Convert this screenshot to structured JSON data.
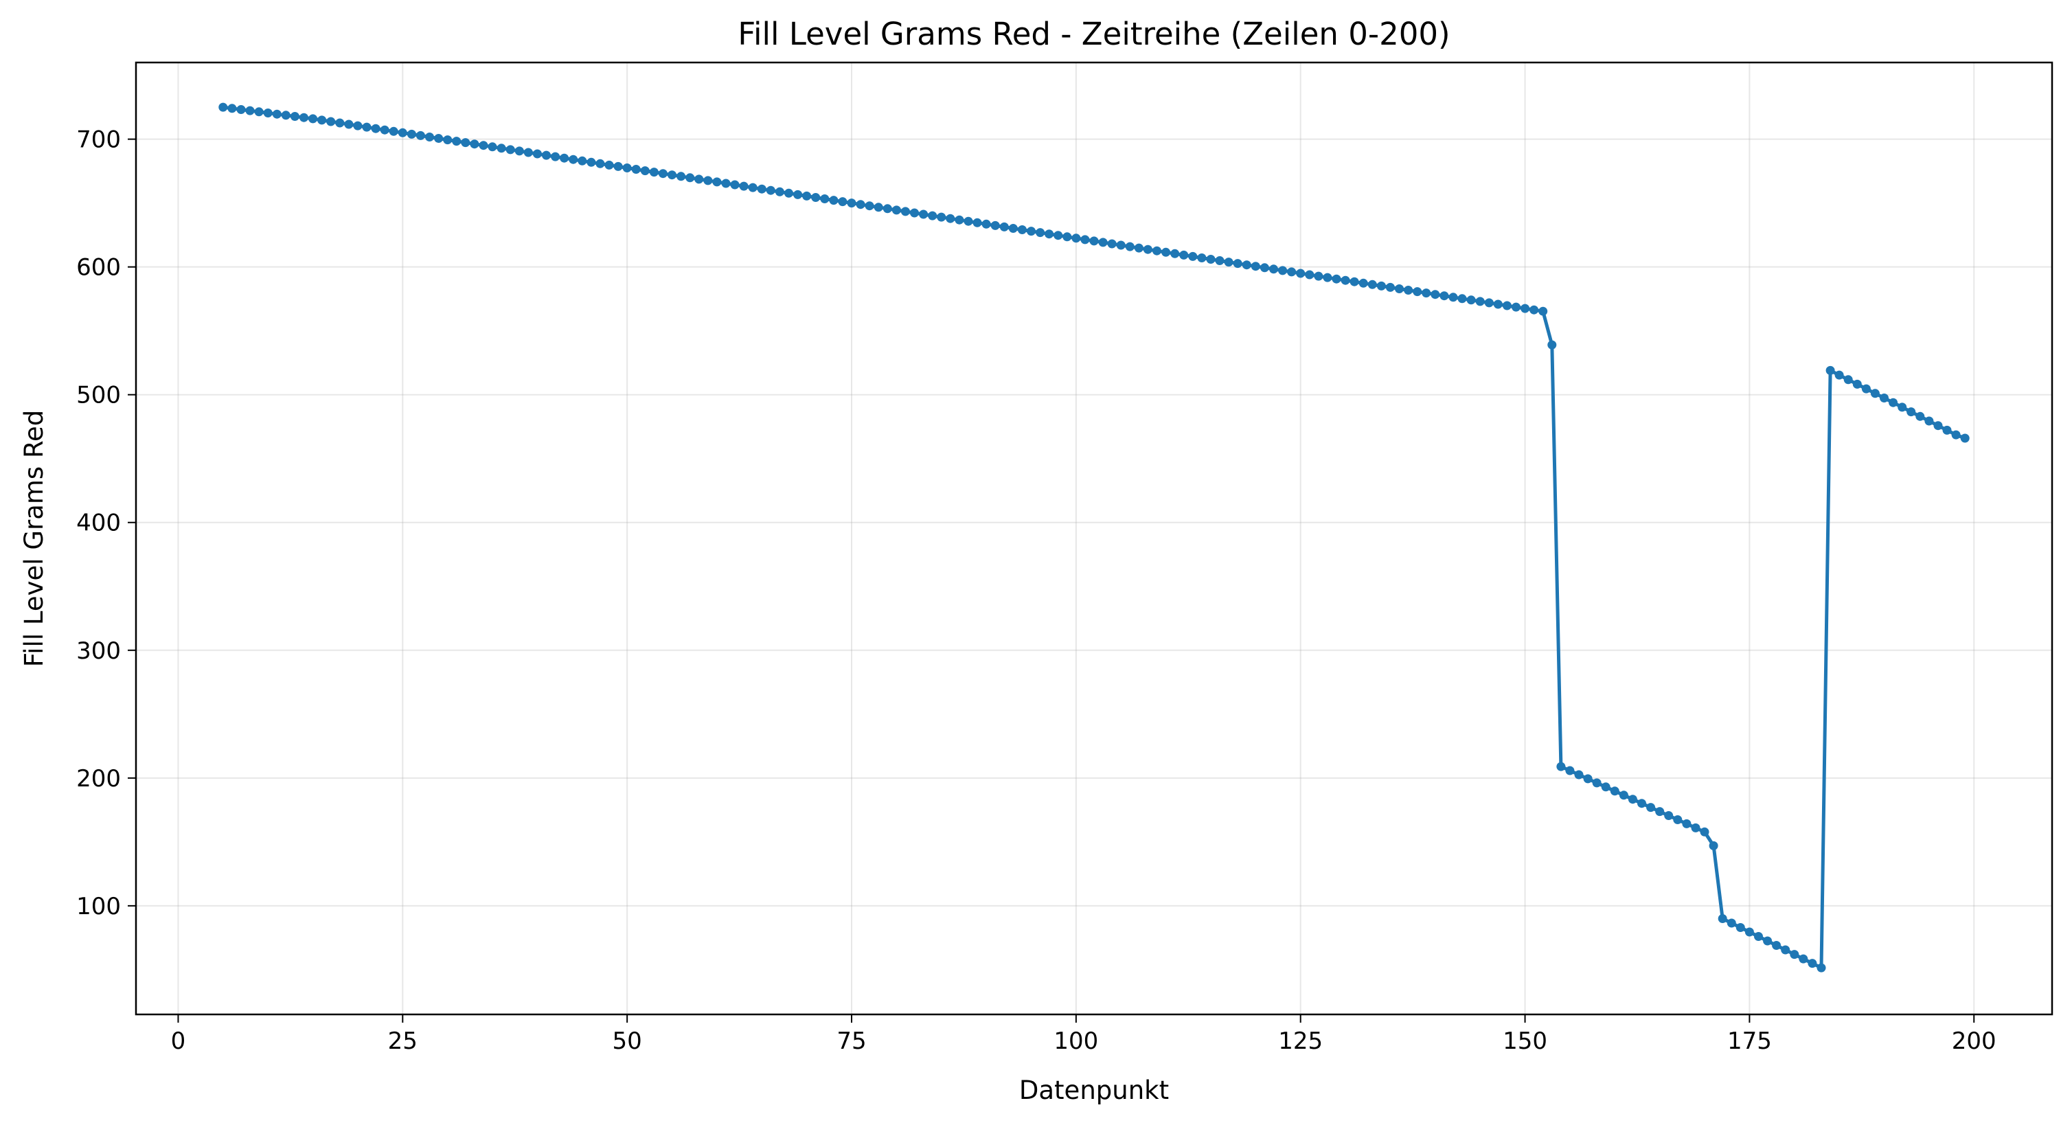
{
  "chart_data": {
    "type": "line",
    "title": "Fill Level Grams Red - Zeitreihe (Zeilen 0-200)",
    "xlabel": "Datenpunkt",
    "ylabel": "Fill Level Grams Red",
    "xlim": [
      -4.7,
      208.7
    ],
    "ylim": [
      15,
      760
    ],
    "xticks": [
      0,
      25,
      50,
      75,
      100,
      125,
      150,
      175,
      200
    ],
    "yticks": [
      100,
      200,
      300,
      400,
      500,
      600,
      700
    ],
    "grid": true,
    "series": [
      {
        "color": "#1f77b4",
        "marker": "circle",
        "x": [
          5,
          6,
          7,
          8,
          9,
          10,
          11,
          12,
          13,
          14,
          15,
          16,
          17,
          18,
          19,
          20,
          21,
          22,
          23,
          24,
          25,
          26,
          27,
          28,
          29,
          30,
          31,
          32,
          33,
          34,
          35,
          36,
          37,
          38,
          39,
          40,
          41,
          42,
          43,
          44,
          45,
          46,
          47,
          48,
          49,
          50,
          51,
          52,
          53,
          54,
          55,
          56,
          57,
          58,
          59,
          60,
          61,
          62,
          63,
          64,
          65,
          66,
          67,
          68,
          69,
          70,
          71,
          72,
          73,
          74,
          75,
          76,
          77,
          78,
          79,
          80,
          81,
          82,
          83,
          84,
          85,
          86,
          87,
          88,
          89,
          90,
          91,
          92,
          93,
          94,
          95,
          96,
          97,
          98,
          99,
          100,
          101,
          102,
          103,
          104,
          105,
          106,
          107,
          108,
          109,
          110,
          111,
          112,
          113,
          114,
          115,
          116,
          117,
          118,
          119,
          120,
          121,
          122,
          123,
          124,
          125,
          126,
          127,
          128,
          129,
          130,
          131,
          132,
          133,
          134,
          135,
          136,
          137,
          138,
          139,
          140,
          141,
          142,
          143,
          144,
          145,
          146,
          147,
          148,
          149,
          150,
          151,
          152,
          153,
          154,
          155,
          156,
          157,
          158,
          159,
          160,
          161,
          162,
          163,
          164,
          165,
          166,
          167,
          168,
          169,
          170,
          171,
          172,
          173,
          174,
          175,
          176,
          177,
          178,
          179,
          180,
          181,
          182,
          183,
          184,
          185,
          186,
          187,
          188,
          189,
          190,
          191,
          192,
          193,
          194,
          195,
          196,
          197,
          198,
          199
        ],
        "y": [
          725,
          724.1,
          723.2,
          722.3,
          721.4,
          720.5,
          719.6,
          718.7,
          717.8,
          716.9,
          716,
          714.9,
          713.8,
          712.7,
          711.6,
          710.5,
          709.4,
          708.3,
          707.2,
          706.1,
          705,
          703.9,
          702.8,
          701.7,
          700.6,
          699.5,
          698.4,
          697.3,
          696.2,
          695.1,
          694,
          692.9,
          691.8,
          690.7,
          689.6,
          688.5,
          687.4,
          686.3,
          685.2,
          684.1,
          683,
          681.9,
          680.8,
          679.7,
          678.6,
          677.5,
          676.4,
          675.3,
          674.2,
          673.1,
          672,
          670.9,
          669.8,
          668.7,
          667.6,
          666.5,
          665.4,
          664.3,
          663.2,
          662.1,
          661,
          659.9,
          658.8,
          657.7,
          656.6,
          655.5,
          654.4,
          653.3,
          652.2,
          651.1,
          650,
          648.9,
          647.8,
          646.7,
          645.6,
          644.5,
          643.4,
          642.3,
          641.2,
          640.1,
          639,
          637.9,
          636.8,
          635.7,
          634.6,
          633.5,
          632.4,
          631.3,
          630.2,
          629.1,
          628,
          626.9,
          625.8,
          624.7,
          623.6,
          622.5,
          621.4,
          620.3,
          619.2,
          618.1,
          617,
          615.9,
          614.8,
          613.7,
          612.6,
          611.5,
          610.4,
          609.3,
          608.2,
          607.1,
          606,
          604.9,
          603.8,
          602.7,
          601.6,
          600.5,
          599.4,
          598.3,
          597.2,
          596.1,
          595,
          593.9,
          592.8,
          591.7,
          590.6,
          589.5,
          588.4,
          587.3,
          586.2,
          585.1,
          584,
          582.9,
          581.8,
          580.7,
          579.6,
          578.5,
          577.4,
          576.3,
          575.2,
          574.1,
          573,
          571.9,
          570.8,
          569.7,
          568.6,
          567.5,
          566.4,
          565.3,
          539,
          209,
          205.8,
          202.6,
          199.4,
          196.2,
          193,
          189.8,
          186.6,
          183.4,
          180.2,
          177,
          173.8,
          170.6,
          167.4,
          164.2,
          161,
          157.8,
          147,
          90,
          86.5,
          83,
          79.5,
          76,
          72.5,
          69,
          65.5,
          62,
          58.5,
          55,
          51.5,
          519,
          515.4,
          511.8,
          508.2,
          504.6,
          501,
          497.4,
          493.8,
          490.2,
          486.6,
          483,
          479.4,
          475.8,
          472.2,
          468.6,
          466
        ]
      }
    ]
  }
}
